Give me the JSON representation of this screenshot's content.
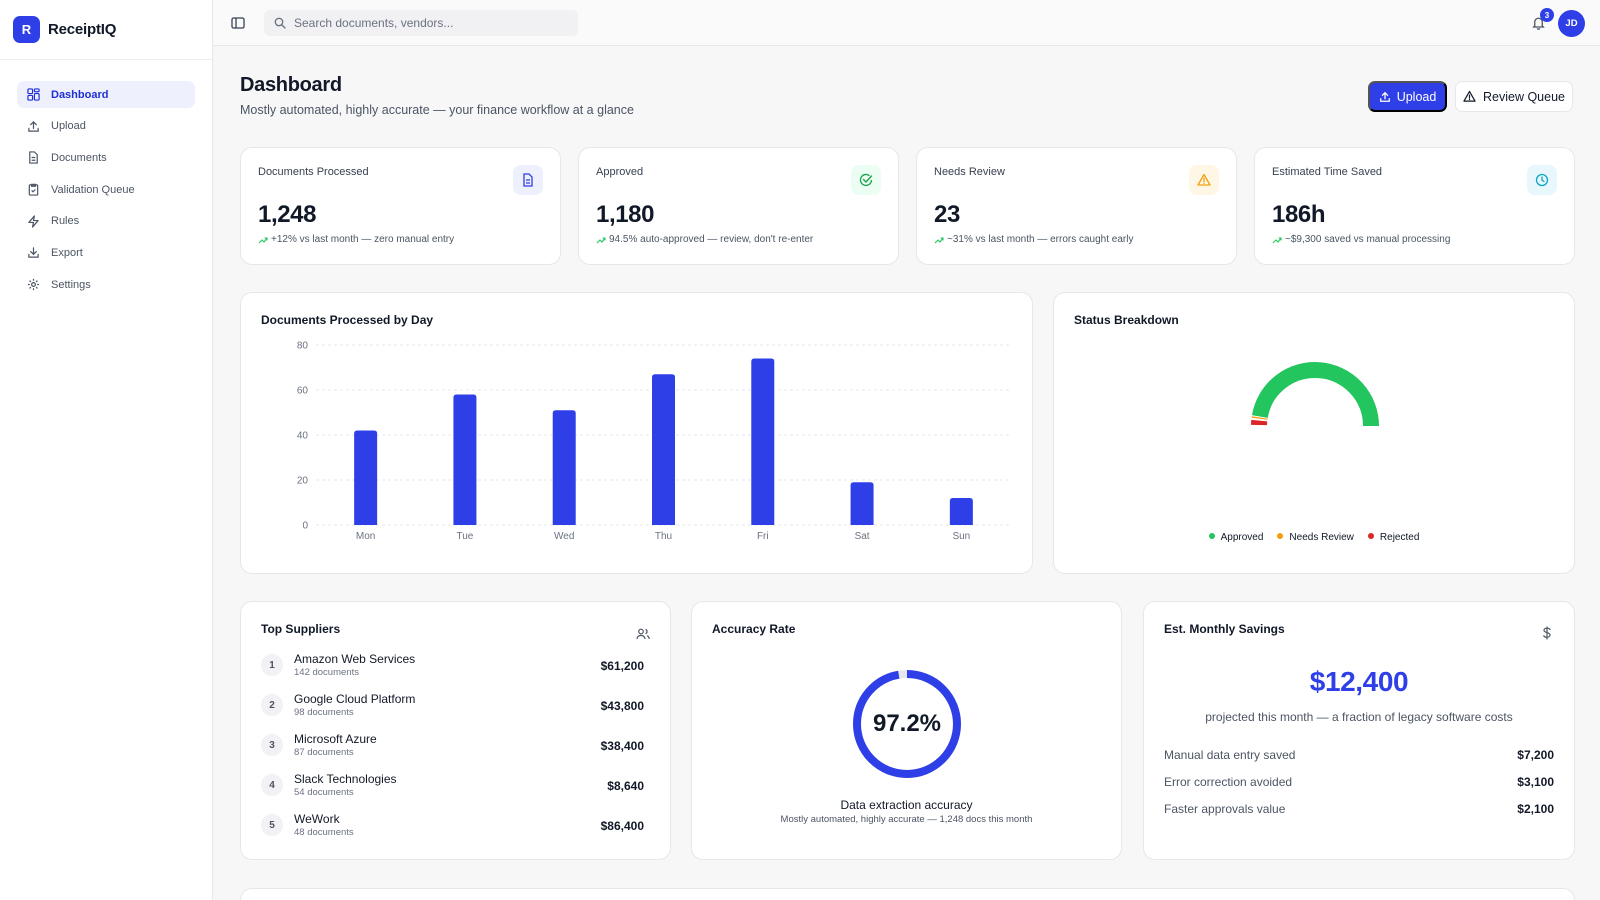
{
  "app": {
    "logo_letter": "R",
    "name": "ReceiptIQ"
  },
  "sidebar": {
    "items": [
      {
        "label": "Dashboard",
        "icon": "dashboard-icon",
        "active": true
      },
      {
        "label": "Upload",
        "icon": "upload-icon"
      },
      {
        "label": "Documents",
        "icon": "document-icon"
      },
      {
        "label": "Validation Queue",
        "icon": "clipboard-check-icon"
      },
      {
        "label": "Rules",
        "icon": "lightning-icon"
      },
      {
        "label": "Export",
        "icon": "download-icon"
      },
      {
        "label": "Settings",
        "icon": "gear-icon"
      }
    ]
  },
  "topbar": {
    "search_placeholder": "Search documents, vendors...",
    "notification_count": "3",
    "avatar_initials": "JD"
  },
  "header": {
    "title": "Dashboard",
    "subtitle": "Mostly automated, highly accurate — your finance workflow at a glance",
    "upload_label": "Upload",
    "review_label": "Review Queue"
  },
  "stats": [
    {
      "label": "Documents Processed",
      "value": "1,248",
      "note": "+12% vs last month — zero manual entry",
      "icon": "document-icon",
      "icon_color": "#2f3fe8",
      "icon_bg": "#eef0fd"
    },
    {
      "label": "Approved",
      "value": "1,180",
      "note": "94.5% auto-approved — review, don't re-enter",
      "icon": "check-circle-icon",
      "icon_color": "#16a34a",
      "icon_bg": "#ecfdf3"
    },
    {
      "label": "Needs Review",
      "value": "23",
      "note": "~31% vs last month — errors caught early",
      "icon": "warning-icon",
      "icon_color": "#f59e0b",
      "icon_bg": "#fff7e6"
    },
    {
      "label": "Estimated Time Saved",
      "value": "186h",
      "note": "~$9,300 saved vs manual processing",
      "icon": "clock-icon",
      "icon_color": "#0ea5c6",
      "icon_bg": "#e7f7fb"
    }
  ],
  "charts": {
    "bar_title": "Documents Processed by Day",
    "donut_title": "Status Breakdown",
    "legend": [
      {
        "label": "Approved",
        "color": "#22c55e"
      },
      {
        "label": "Needs Review",
        "color": "#f59e0b"
      },
      {
        "label": "Rejected",
        "color": "#dc2626"
      }
    ]
  },
  "chart_data": [
    {
      "type": "bar",
      "title": "Documents Processed by Day",
      "categories": [
        "Mon",
        "Tue",
        "Wed",
        "Thu",
        "Fri",
        "Sat",
        "Sun"
      ],
      "values": [
        42,
        58,
        51,
        67,
        74,
        19,
        12
      ],
      "ylim": [
        0,
        80
      ],
      "yticks": [
        0,
        20,
        40,
        60,
        80
      ],
      "color": "#2f3fe8",
      "grid": true
    },
    {
      "type": "pie",
      "title": "Status Breakdown",
      "categories": [
        "Approved",
        "Needs Review",
        "Rejected"
      ],
      "values": [
        1180,
        23,
        45
      ],
      "colors": [
        "#22c55e",
        "#f59e0b",
        "#dc2626"
      ],
      "legend": "bottom"
    }
  ],
  "suppliers": {
    "title": "Top Suppliers",
    "icon": "users-icon",
    "items": [
      {
        "rank": "1",
        "name": "Amazon Web Services",
        "docs": "142 documents",
        "amount": "$61,200"
      },
      {
        "rank": "2",
        "name": "Google Cloud Platform",
        "docs": "98 documents",
        "amount": "$43,800"
      },
      {
        "rank": "3",
        "name": "Microsoft Azure",
        "docs": "87 documents",
        "amount": "$38,400"
      },
      {
        "rank": "4",
        "name": "Slack Technologies",
        "docs": "54 documents",
        "amount": "$8,640"
      },
      {
        "rank": "5",
        "name": "WeWork",
        "docs": "48 documents",
        "amount": "$86,400"
      }
    ]
  },
  "accuracy": {
    "title": "Accuracy Rate",
    "value_text": "97.2%",
    "value": 97.2,
    "caption": "Data extraction accuracy",
    "sub": "Mostly automated, highly accurate — 1,248 docs this month",
    "color": "#2f3fe8"
  },
  "savings": {
    "title": "Est. Monthly Savings",
    "icon": "dollar-icon",
    "amount": "$12,400",
    "sub": "projected this month — a fraction of legacy software costs",
    "rows": [
      {
        "label": "Manual data entry saved",
        "value": "$7,200"
      },
      {
        "label": "Error correction avoided",
        "value": "$3,100"
      },
      {
        "label": "Faster approvals value",
        "value": "$2,100"
      }
    ]
  }
}
